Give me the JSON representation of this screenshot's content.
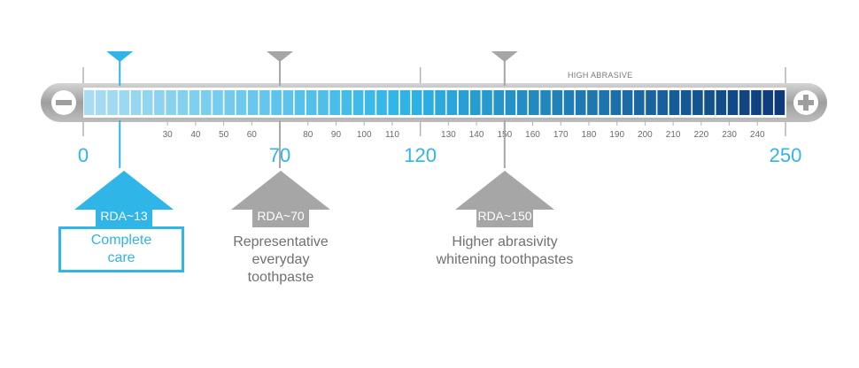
{
  "scale": {
    "min": 0,
    "max": 250,
    "band_label": "HIGH ABRASIVE",
    "minus_icon": "minus-icon",
    "plus_icon": "plus-icon",
    "minor_ticks": [
      30,
      40,
      50,
      60,
      80,
      90,
      100,
      110,
      130,
      140,
      150,
      160,
      170,
      180,
      190,
      200,
      210,
      220,
      230,
      240
    ],
    "major_ticks": [
      0,
      70,
      120,
      250
    ],
    "gradient_start": "#a9dcf2",
    "gradient_mid": "#2fb5e8",
    "gradient_end": "#0d3a78",
    "accent_blue": "#2fb5e8",
    "gray": "#a6a6a6"
  },
  "markers": [
    {
      "id": "rda13",
      "value": 13,
      "label": "RDA~13",
      "description": [
        "Complete",
        "care"
      ],
      "style": "blue"
    },
    {
      "id": "rda70",
      "value": 70,
      "label": "RDA~70",
      "description": [
        "Representative",
        "everyday",
        "toothpaste"
      ],
      "style": "gray"
    },
    {
      "id": "rda150",
      "value": 150,
      "label": "RDA~150",
      "description": [
        "Higher abrasivity",
        "whitening toothpastes"
      ],
      "style": "gray"
    }
  ]
}
